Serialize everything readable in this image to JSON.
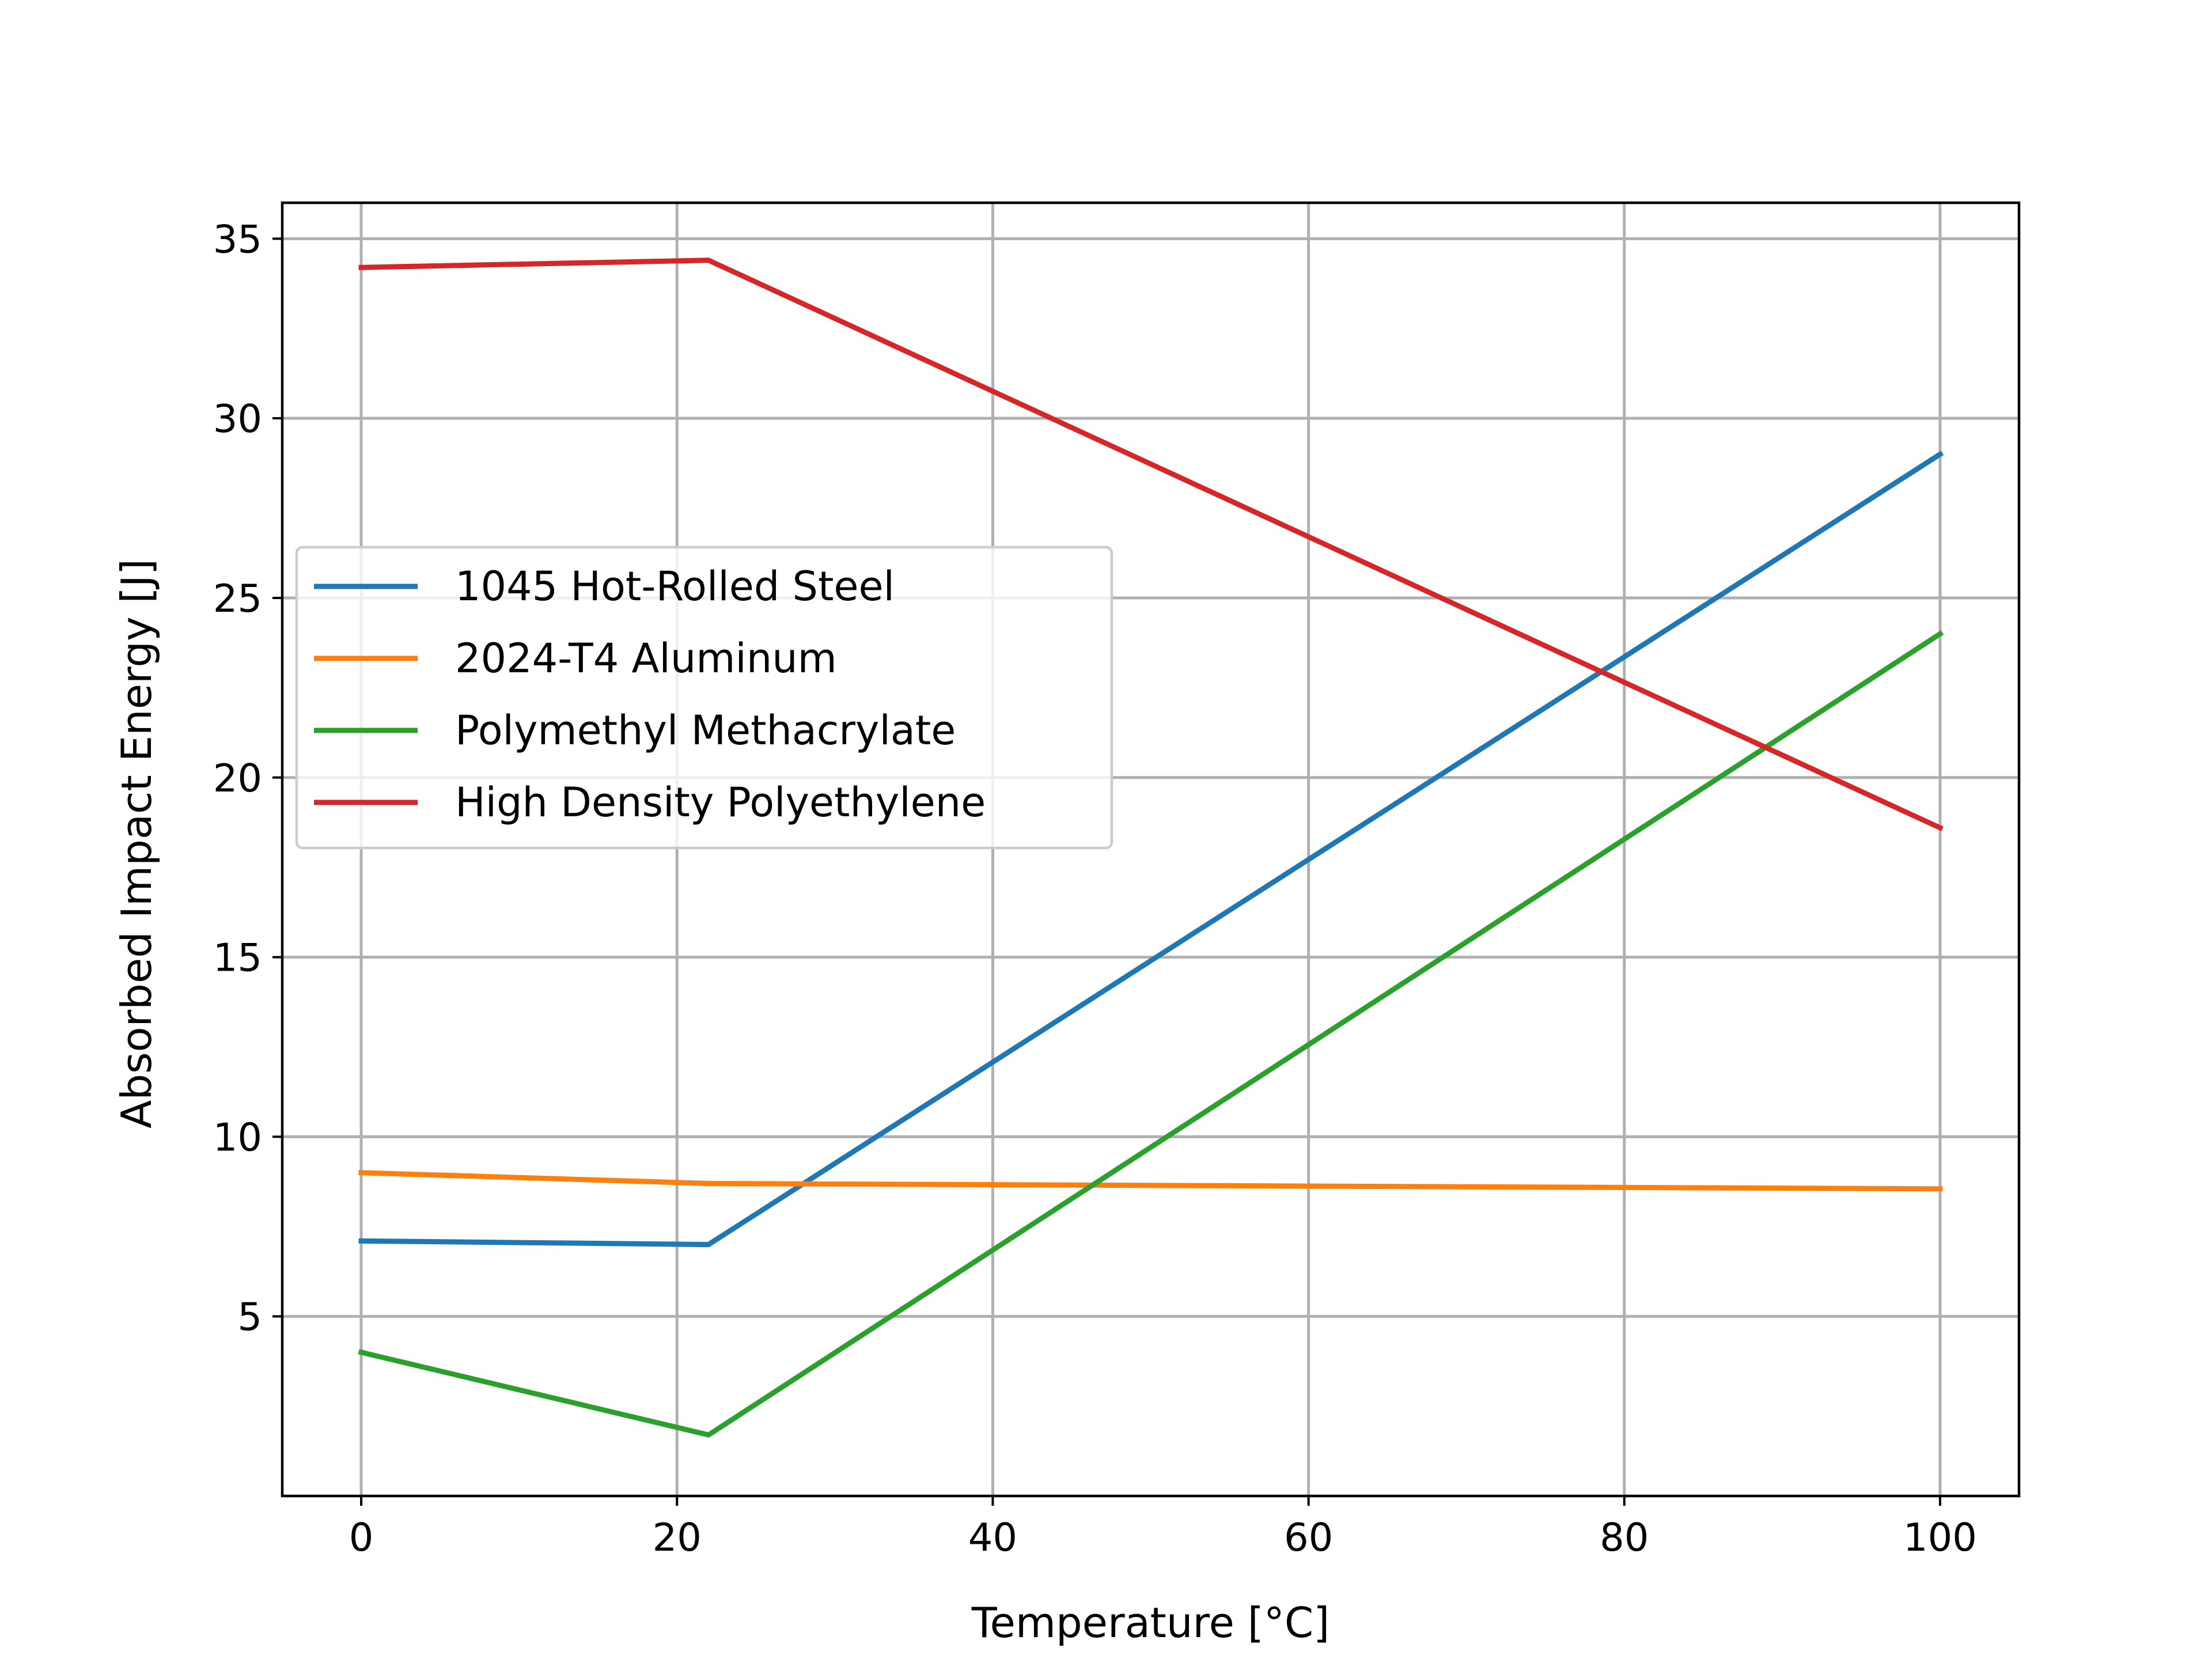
{
  "chart_data": {
    "type": "line",
    "title": "",
    "xlabel": "Temperature [°C]",
    "ylabel": "Absorbed Impact Energy [J]",
    "xlim": [
      -5,
      105
    ],
    "ylim": [
      0,
      36
    ],
    "xticks": [
      0,
      20,
      40,
      60,
      80,
      100
    ],
    "yticks": [
      5,
      10,
      15,
      20,
      25,
      30,
      35
    ],
    "grid": true,
    "legend_position": "center-left",
    "x": [
      0,
      22,
      100
    ],
    "series": [
      {
        "name": "1045 Hot-Rolled Steel",
        "color": "#1f77b4",
        "values": [
          7.1,
          7.0,
          29.0
        ]
      },
      {
        "name": "2024-T4 Aluminum",
        "color": "#ff7f0e",
        "values": [
          9.0,
          8.7,
          8.55
        ]
      },
      {
        "name": "Polymethyl Methacrylate",
        "color": "#2ca02c",
        "values": [
          4.0,
          1.7,
          24.0
        ]
      },
      {
        "name": "High Density Polyethylene",
        "color": "#d62728",
        "values": [
          34.2,
          34.4,
          18.6
        ]
      }
    ]
  }
}
